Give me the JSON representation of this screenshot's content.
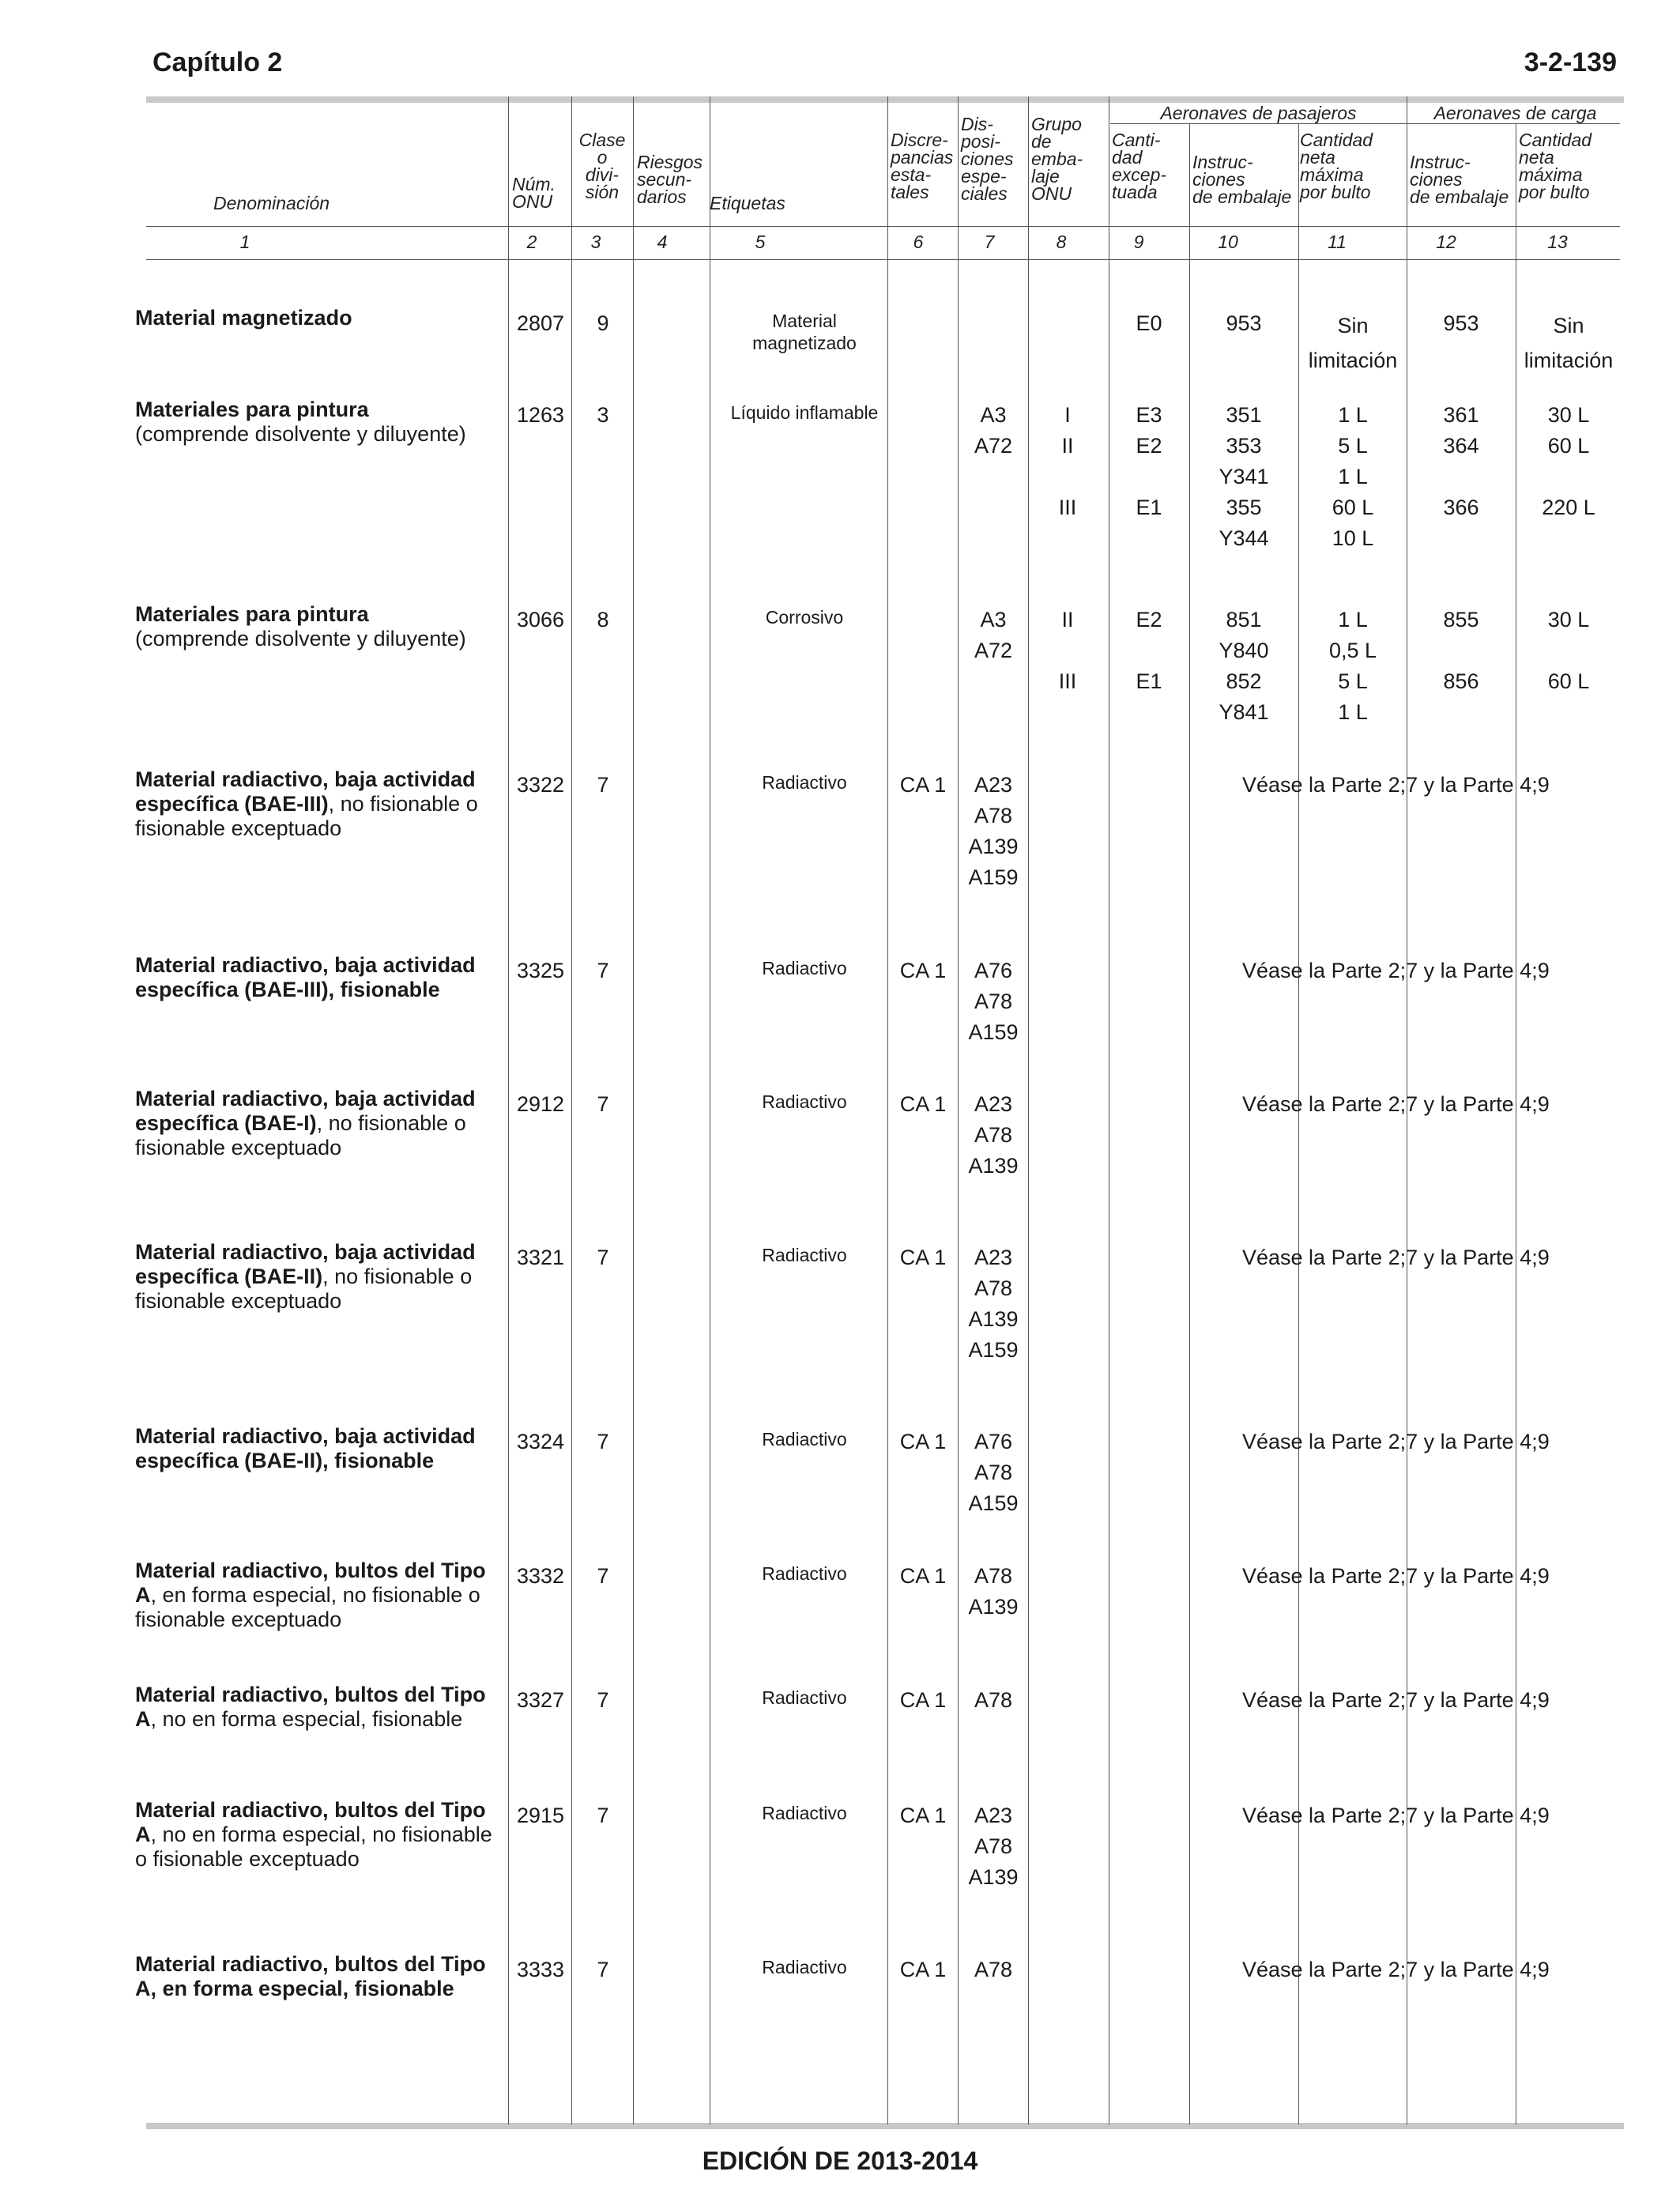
{
  "header": {
    "chapter": "Capítulo 2",
    "page": "3-2-139"
  },
  "columns": {
    "denominacion": "Denominación",
    "num_onu": "Núm.\nONU",
    "clase": "Clase\no\ndivi-\nsión",
    "riesgos": "Riesgos\nsecun-\ndarios",
    "etiquetas": "Etiquetas",
    "discrepancias": "Discre-\npancias\nesta-\ntales",
    "disposiciones": "Dis-\nposi-\nciones\nespe-\nciales",
    "grupo": "Grupo\nde\nemba-\nlaje\nONU",
    "cantidad_exceptuada": "Canti-\ndad\nexcep-\ntuada",
    "pasajeros": "Aeronaves de pasajeros",
    "carga": "Aeronaves de carga",
    "instrucciones": "Instruc-\nciones\nde embalaje",
    "cantidad_neta": "Cantidad\nneta\nmáxima\npor bulto",
    "numbers": [
      "1",
      "2",
      "3",
      "4",
      "5",
      "6",
      "7",
      "8",
      "9",
      "10",
      "11",
      "12",
      "13"
    ]
  },
  "see_text": "Véase la Parte 2;7 y la Parte 4;9",
  "rows": [
    {
      "name_bold": "Material magnetizado",
      "name_rest": "",
      "onu": "2807",
      "clase": "9",
      "label": "Material\nmagnetizado",
      "disc": "",
      "esp": "",
      "grupo": "",
      "exc": "E0",
      "p_inst": "953",
      "p_cant": "Sin\nlimitación",
      "c_inst": "953",
      "c_cant": "Sin\nlimitación"
    },
    {
      "name_bold": "Materiales para pintura",
      "name_rest": "(comprende disolvente y diluyente)",
      "onu": "1263",
      "clase": "3",
      "label": "Líquido inflamable",
      "disc": "",
      "esp": "A3\nA72",
      "grupo": "I\nII\n\nIII",
      "exc": "E3\nE2\n\nE1",
      "p_inst": "351\n353\nY341\n355\nY344",
      "p_cant": "1 L\n5 L\n1 L\n60 L\n10 L",
      "c_inst": "361\n364\n\n366",
      "c_cant": "30 L\n60 L\n\n220 L"
    },
    {
      "name_bold": "Materiales para pintura",
      "name_rest": "(comprende disolvente y diluyente)",
      "onu": "3066",
      "clase": "8",
      "label": "Corrosivo",
      "disc": "",
      "esp": "A3\nA72",
      "grupo": "II\n\nIII",
      "exc": "E2\n\nE1",
      "p_inst": "851\nY840\n852\nY841",
      "p_cant": "1 L\n0,5 L\n5 L\n1 L",
      "c_inst": "855\n\n856",
      "c_cant": "30 L\n\n60 L"
    },
    {
      "name_bold": "Material radiactivo, baja actividad específica (BAE-III)",
      "name_rest": ", no fisionable o fisionable exceptuado",
      "onu": "3322",
      "clase": "7",
      "label": "Radiactivo",
      "disc": "CA 1",
      "esp": "A23\nA78\nA139\nA159",
      "see": true
    },
    {
      "name_bold": "Material radiactivo, baja actividad específica (BAE-III), fisionable",
      "name_rest": "",
      "onu": "3325",
      "clase": "7",
      "label": "Radiactivo",
      "disc": "CA 1",
      "esp": "A76\nA78\nA159",
      "see": true
    },
    {
      "name_bold": "Material radiactivo, baja actividad específica (BAE-I)",
      "name_rest": ", no fisionable o fisionable exceptuado",
      "onu": "2912",
      "clase": "7",
      "label": "Radiactivo",
      "disc": "CA 1",
      "esp": "A23\nA78\nA139",
      "see": true
    },
    {
      "name_bold": "Material radiactivo, baja actividad específica (BAE-II)",
      "name_rest": ", no fisionable o fisionable exceptuado",
      "onu": "3321",
      "clase": "7",
      "label": "Radiactivo",
      "disc": "CA 1",
      "esp": "A23\nA78\nA139\nA159",
      "see": true
    },
    {
      "name_bold": "Material radiactivo, baja actividad específica (BAE-II), fisionable",
      "name_rest": "",
      "onu": "3324",
      "clase": "7",
      "label": "Radiactivo",
      "disc": "CA 1",
      "esp": "A76\nA78\nA159",
      "see": true
    },
    {
      "name_bold": "Material radiactivo, bultos del Tipo A",
      "name_rest": ", en forma especial, no fisionable o fisionable exceptuado",
      "onu": "3332",
      "clase": "7",
      "label": "Radiactivo",
      "disc": "CA 1",
      "esp": "A78\nA139",
      "see": true
    },
    {
      "name_bold": "Material radiactivo, bultos del Tipo A",
      "name_rest": ", no en forma especial, fisionable",
      "onu": "3327",
      "clase": "7",
      "label": "Radiactivo",
      "disc": "CA 1",
      "esp": "A78",
      "see": true
    },
    {
      "name_bold": "Material radiactivo, bultos del Tipo A",
      "name_rest": ", no en forma especial, no fisionable o fisionable exceptuado",
      "onu": "2915",
      "clase": "7",
      "label": "Radiactivo",
      "disc": "CA 1",
      "esp": "A23\nA78\nA139",
      "see": true
    },
    {
      "name_bold": "Material radiactivo, bultos del Tipo A, en forma especial, fisionable",
      "name_rest": "",
      "onu": "3333",
      "clase": "7",
      "label": "Radiactivo",
      "disc": "CA 1",
      "esp": "A78",
      "see": true
    }
  ],
  "footer": "EDICIÓN DE 2013-2014"
}
